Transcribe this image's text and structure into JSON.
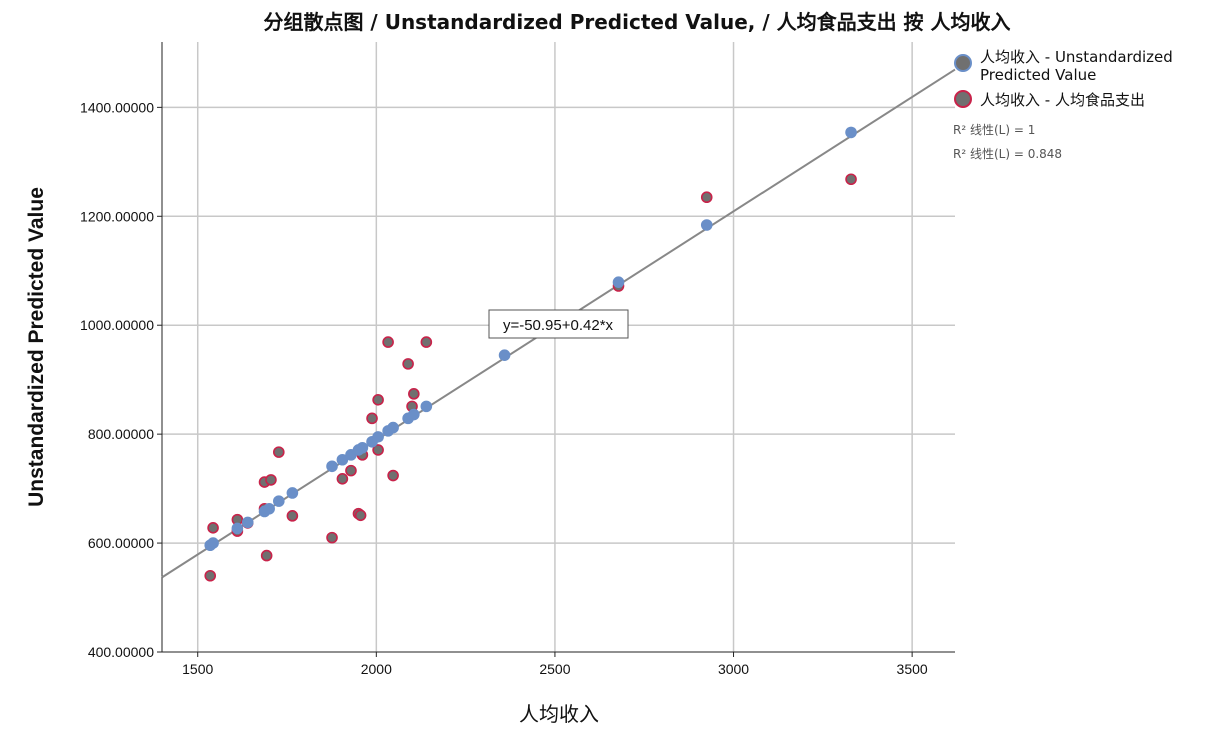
{
  "chart_data": {
    "type": "scatter",
    "title": "分组散点图 / Unstandardized Predicted Value, / 人均食品支出 按 人均收入",
    "xlabel": "人均收入",
    "ylabel": "Unstandardized Predicted Value",
    "xlim": [
      1400,
      3620
    ],
    "ylim": [
      400,
      1520
    ],
    "xticks": [
      1500,
      2000,
      2500,
      3000,
      3500
    ],
    "xtick_labels": [
      "1500",
      "2000",
      "2500",
      "3000",
      "3500"
    ],
    "yticks": [
      400,
      600,
      800,
      1000,
      1200,
      1400
    ],
    "ytick_labels": [
      "400.00000",
      "600.00000",
      "800.00000",
      "1000.00000",
      "1200.00000",
      "1400.00000"
    ],
    "grid": true,
    "legend_position": "right",
    "fit_equation": "y=-50.95+0.42*x",
    "fit": {
      "intercept": -50.95,
      "slope": 0.42
    },
    "r2_labels": [
      "R² 线性(L) = 1",
      "R² 线性(L) = 0.848"
    ],
    "series": [
      {
        "name": "人均收入 - Unstandardized Predicted Value",
        "color": "#6a8fc8",
        "edge": "#6a8fc8",
        "points": [
          [
            1535,
            596
          ],
          [
            1543,
            600
          ],
          [
            1611,
            627
          ],
          [
            1640,
            638
          ],
          [
            1687,
            658
          ],
          [
            1700,
            663
          ],
          [
            1727,
            677
          ],
          [
            1765,
            692
          ],
          [
            1876,
            741
          ],
          [
            1905,
            753
          ],
          [
            1929,
            762
          ],
          [
            1950,
            771
          ],
          [
            1961,
            775
          ],
          [
            1988,
            786
          ],
          [
            2005,
            795
          ],
          [
            2033,
            806
          ],
          [
            2047,
            812
          ],
          [
            2089,
            829
          ],
          [
            2105,
            836
          ],
          [
            2140,
            851
          ],
          [
            2359,
            945
          ],
          [
            2678,
            1079
          ],
          [
            2925,
            1184
          ],
          [
            3329,
            1354
          ]
        ]
      },
      {
        "name": "人均收入 - 人均食品支出",
        "color": "#707070",
        "edge": "#c8234a",
        "points": [
          [
            1535,
            540
          ],
          [
            1543,
            628
          ],
          [
            1611,
            643
          ],
          [
            1611,
            622
          ],
          [
            1640,
            637
          ],
          [
            1687,
            712
          ],
          [
            1687,
            663
          ],
          [
            1693,
            577
          ],
          [
            1705,
            716
          ],
          [
            1727,
            767
          ],
          [
            1765,
            650
          ],
          [
            1876,
            610
          ],
          [
            1905,
            718
          ],
          [
            1929,
            733
          ],
          [
            1950,
            654
          ],
          [
            1956,
            651
          ],
          [
            1961,
            762
          ],
          [
            1988,
            829
          ],
          [
            2005,
            863
          ],
          [
            2005,
            771
          ],
          [
            2033,
            969
          ],
          [
            2047,
            724
          ],
          [
            2089,
            929
          ],
          [
            2100,
            851
          ],
          [
            2105,
            874
          ],
          [
            2140,
            969
          ],
          [
            2678,
            1072
          ],
          [
            2925,
            1235
          ],
          [
            3329,
            1268
          ]
        ]
      }
    ]
  }
}
